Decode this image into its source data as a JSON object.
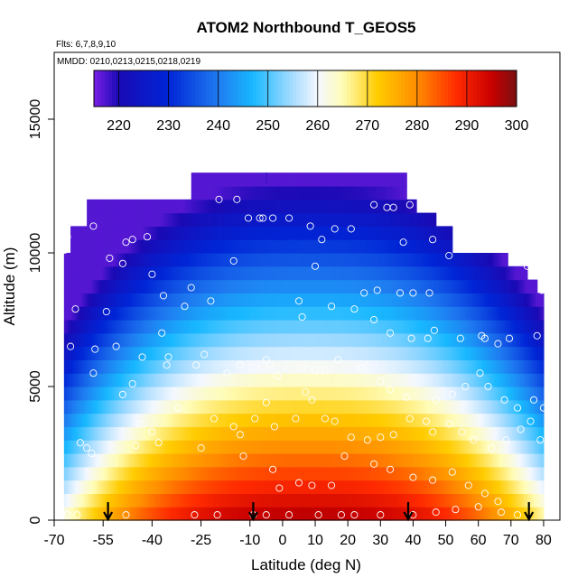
{
  "chart_data": {
    "type": "heatmap",
    "title": "ATOM2 Northbound T_GEOS5",
    "subtitle_flights": "Flts: 6,7,8,9,10",
    "subtitle_dates": "MMDD: 0210,0213,0215,0218,0219",
    "xlabel": "Latitude (deg N)",
    "ylabel": "Altitude (m)",
    "xlim": [
      -70,
      85
    ],
    "ylim": [
      0,
      17500
    ],
    "x_ticks": [
      -70,
      -55,
      -40,
      -25,
      -10,
      0,
      10,
      20,
      30,
      40,
      50,
      60,
      70,
      80
    ],
    "x_tick_labels": [
      "-70",
      "-55",
      "-40",
      "-25",
      "-10",
      "0",
      "10",
      "20",
      "30",
      "40",
      "50",
      "60",
      "70",
      "80"
    ],
    "y_ticks": [
      0,
      5000,
      10000,
      15000
    ],
    "y_tick_labels": [
      "0",
      "5000",
      "10000",
      "15000"
    ],
    "colorbar": {
      "min": 215,
      "max": 300,
      "ticks": [
        220,
        230,
        240,
        250,
        260,
        270,
        280,
        290,
        300
      ],
      "tick_labels": [
        "220",
        "230",
        "240",
        "250",
        "260",
        "270",
        "280",
        "290",
        "300"
      ],
      "stops": [
        {
          "v": 215,
          "c": "#7a1fe6"
        },
        {
          "v": 220,
          "c": "#1a0ab4"
        },
        {
          "v": 230,
          "c": "#0025d6"
        },
        {
          "v": 240,
          "c": "#1f7bf0"
        },
        {
          "v": 247,
          "c": "#18b8ff"
        },
        {
          "v": 255,
          "c": "#a8dcff"
        },
        {
          "v": 260,
          "c": "#f4f8ff"
        },
        {
          "v": 265,
          "c": "#fffcb8"
        },
        {
          "v": 272,
          "c": "#ffcc00"
        },
        {
          "v": 280,
          "c": "#ff8c00"
        },
        {
          "v": 288,
          "c": "#ff2a00"
        },
        {
          "v": 295,
          "c": "#c80000"
        },
        {
          "v": 300,
          "c": "#7a0f0f"
        }
      ]
    },
    "flight_path_markers_lat": [
      -53.5,
      -9,
      38.5,
      75.5
    ],
    "sample_points": [
      [
        -65.7,
        11700
      ],
      [
        -66.9,
        10100
      ],
      [
        -66,
        10600
      ],
      [
        -63.5,
        7900
      ],
      [
        -65,
        6500
      ],
      [
        -61.5,
        11200
      ],
      [
        -58,
        11000
      ],
      [
        -49,
        9600
      ],
      [
        -53,
        9800
      ],
      [
        -54,
        7800
      ],
      [
        -51,
        6500
      ],
      [
        -48,
        10400
      ],
      [
        -46,
        10500
      ],
      [
        -41.5,
        10600
      ],
      [
        -40,
        9200
      ],
      [
        -36.5,
        8400
      ],
      [
        -37,
        7000
      ],
      [
        -43,
        6100
      ],
      [
        -46,
        5100
      ],
      [
        -30,
        8000
      ],
      [
        -28,
        8700
      ],
      [
        -22,
        8200
      ],
      [
        -15,
        9700
      ],
      [
        -19.5,
        12000
      ],
      [
        -14,
        12000
      ],
      [
        -10.5,
        11300
      ],
      [
        -6,
        11300
      ],
      [
        -3,
        11300
      ],
      [
        -7,
        11300
      ],
      [
        2,
        11300
      ],
      [
        8.5,
        11000
      ],
      [
        16,
        10900
      ],
      [
        21,
        10900
      ],
      [
        28,
        11800
      ],
      [
        32,
        11700
      ],
      [
        34,
        11700
      ],
      [
        39,
        11800
      ],
      [
        37,
        10400
      ],
      [
        46,
        10500
      ],
      [
        51,
        9900
      ],
      [
        55,
        10400
      ],
      [
        58,
        10300
      ],
      [
        45,
        8500
      ],
      [
        40,
        8500
      ],
      [
        36,
        8500
      ],
      [
        29,
        8600
      ],
      [
        25,
        8500
      ],
      [
        10,
        9500
      ],
      [
        12,
        10500
      ],
      [
        6,
        7600
      ],
      [
        5,
        8200
      ],
      [
        15,
        8000
      ],
      [
        22,
        7900
      ],
      [
        28,
        7500
      ],
      [
        33,
        7000
      ],
      [
        39.5,
        6800
      ],
      [
        44.5,
        6800
      ],
      [
        46.5,
        7100
      ],
      [
        54.5,
        6800
      ],
      [
        61,
        6900
      ],
      [
        62,
        6800
      ],
      [
        66,
        6600
      ],
      [
        69.5,
        6800
      ],
      [
        78,
        6900
      ],
      [
        79.5,
        8600
      ],
      [
        75,
        9500
      ],
      [
        74,
        10000
      ],
      [
        -57.5,
        6400
      ],
      [
        -35.5,
        5800
      ],
      [
        -35,
        6100
      ],
      [
        -24,
        6200
      ],
      [
        -26.5,
        5800
      ],
      [
        -13,
        5800
      ],
      [
        -17,
        5500
      ],
      [
        -5,
        6000
      ],
      [
        -4,
        5800
      ],
      [
        -1.5,
        5400
      ],
      [
        6,
        5700
      ],
      [
        10,
        5600
      ],
      [
        13,
        5600
      ],
      [
        17,
        6000
      ],
      [
        24,
        5700
      ],
      [
        30,
        5200
      ],
      [
        33,
        4900
      ],
      [
        38,
        4600
      ],
      [
        47,
        4500
      ],
      [
        52,
        4700
      ],
      [
        56,
        5000
      ],
      [
        60.5,
        5500
      ],
      [
        63,
        5000
      ],
      [
        68,
        4500
      ],
      [
        72,
        4200
      ],
      [
        77,
        4500
      ],
      [
        80,
        4200
      ],
      [
        -58,
        5500
      ],
      [
        -49,
        4700
      ],
      [
        -44,
        3600
      ],
      [
        -40,
        3300
      ],
      [
        -38,
        2900
      ],
      [
        -32,
        4200
      ],
      [
        -21,
        3800
      ],
      [
        -15,
        3500
      ],
      [
        -13,
        3200
      ],
      [
        -8.5,
        3800
      ],
      [
        -5,
        4400
      ],
      [
        -2.5,
        3500
      ],
      [
        4,
        3800
      ],
      [
        7,
        4800
      ],
      [
        9,
        4500
      ],
      [
        13,
        3800
      ],
      [
        16,
        3700
      ],
      [
        21,
        3100
      ],
      [
        26,
        3000
      ],
      [
        30,
        3100
      ],
      [
        34,
        3200
      ],
      [
        39,
        3800
      ],
      [
        44,
        3700
      ],
      [
        46,
        3300
      ],
      [
        51,
        3600
      ],
      [
        55,
        3300
      ],
      [
        58.5,
        3000
      ],
      [
        64,
        2700
      ],
      [
        68.5,
        3000
      ],
      [
        73,
        3400
      ],
      [
        76,
        3700
      ],
      [
        79,
        3000
      ],
      [
        -62,
        2900
      ],
      [
        -60,
        2700
      ],
      [
        -58.5,
        2500
      ],
      [
        -45,
        2800
      ],
      [
        -25,
        2700
      ],
      [
        -12,
        2400
      ],
      [
        -3,
        1900
      ],
      [
        -1,
        1200
      ],
      [
        5,
        1400
      ],
      [
        9,
        1300
      ],
      [
        15,
        1300
      ],
      [
        19,
        2400
      ],
      [
        28,
        2100
      ],
      [
        33,
        1900
      ],
      [
        40,
        1600
      ],
      [
        46,
        1500
      ],
      [
        52,
        1800
      ],
      [
        57,
        1300
      ],
      [
        62,
        1000
      ],
      [
        66,
        700
      ],
      [
        -66,
        200
      ],
      [
        -63,
        200
      ],
      [
        -48,
        200
      ],
      [
        -27,
        200
      ],
      [
        -20,
        200
      ],
      [
        -9,
        200
      ],
      [
        -5,
        200
      ],
      [
        2,
        200
      ],
      [
        11,
        200
      ],
      [
        18,
        200
      ],
      [
        22,
        200
      ],
      [
        30,
        200
      ],
      [
        40,
        200
      ],
      [
        47,
        300
      ],
      [
        53,
        400
      ],
      [
        60,
        500
      ],
      [
        67,
        300
      ],
      [
        72,
        200
      ]
    ]
  }
}
